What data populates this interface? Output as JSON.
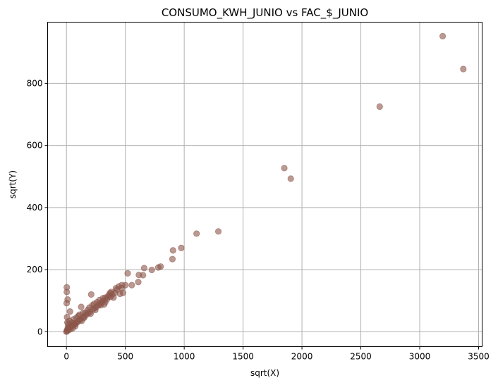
{
  "chart_data": {
    "type": "scatter",
    "title": "CONSUMO_KWH_JUNIO vs FAC_$_JUNIO",
    "xlabel": "sqrt(X)",
    "ylabel": "sqrt(Y)",
    "xlim": [
      -160,
      3530
    ],
    "ylim": [
      -48,
      997
    ],
    "xticks": [
      0,
      500,
      1000,
      1500,
      2000,
      2500,
      3000,
      3500
    ],
    "yticks": [
      0,
      200,
      400,
      600,
      800
    ],
    "grid": true,
    "marker_color": "#8c564b",
    "marker_alpha": 0.6,
    "points": [
      {
        "x": 3195,
        "y": 952
      },
      {
        "x": 3370,
        "y": 846
      },
      {
        "x": 2660,
        "y": 725
      },
      {
        "x": 1850,
        "y": 527
      },
      {
        "x": 1905,
        "y": 493
      },
      {
        "x": 1290,
        "y": 323
      },
      {
        "x": 1105,
        "y": 316
      },
      {
        "x": 975,
        "y": 270
      },
      {
        "x": 905,
        "y": 262
      },
      {
        "x": 900,
        "y": 234
      },
      {
        "x": 800,
        "y": 210
      },
      {
        "x": 780,
        "y": 207
      },
      {
        "x": 725,
        "y": 199
      },
      {
        "x": 660,
        "y": 205
      },
      {
        "x": 650,
        "y": 182
      },
      {
        "x": 615,
        "y": 183
      },
      {
        "x": 610,
        "y": 160
      },
      {
        "x": 555,
        "y": 150
      },
      {
        "x": 520,
        "y": 188
      },
      {
        "x": 500,
        "y": 150
      },
      {
        "x": 470,
        "y": 150
      },
      {
        "x": 455,
        "y": 122
      },
      {
        "x": 445,
        "y": 146
      },
      {
        "x": 430,
        "y": 135
      },
      {
        "x": 410,
        "y": 125
      },
      {
        "x": 390,
        "y": 120
      },
      {
        "x": 375,
        "y": 112
      },
      {
        "x": 360,
        "y": 118
      },
      {
        "x": 345,
        "y": 105
      },
      {
        "x": 330,
        "y": 110
      },
      {
        "x": 315,
        "y": 100
      },
      {
        "x": 300,
        "y": 95
      },
      {
        "x": 285,
        "y": 90
      },
      {
        "x": 270,
        "y": 85
      },
      {
        "x": 255,
        "y": 80
      },
      {
        "x": 240,
        "y": 76
      },
      {
        "x": 225,
        "y": 72
      },
      {
        "x": 210,
        "y": 120
      },
      {
        "x": 200,
        "y": 64
      },
      {
        "x": 185,
        "y": 60
      },
      {
        "x": 170,
        "y": 55
      },
      {
        "x": 155,
        "y": 50
      },
      {
        "x": 140,
        "y": 46
      },
      {
        "x": 125,
        "y": 80
      },
      {
        "x": 115,
        "y": 38
      },
      {
        "x": 100,
        "y": 34
      },
      {
        "x": 90,
        "y": 30
      },
      {
        "x": 80,
        "y": 27
      },
      {
        "x": 70,
        "y": 24
      },
      {
        "x": 60,
        "y": 22
      },
      {
        "x": 50,
        "y": 20
      },
      {
        "x": 40,
        "y": 18
      },
      {
        "x": 30,
        "y": 15
      },
      {
        "x": 20,
        "y": 12
      },
      {
        "x": 10,
        "y": 8
      },
      {
        "x": 5,
        "y": 5
      },
      {
        "x": 2,
        "y": 2
      },
      {
        "x": 0,
        "y": 0
      },
      {
        "x": 3,
        "y": 143
      },
      {
        "x": 3,
        "y": 128
      },
      {
        "x": 10,
        "y": 104
      },
      {
        "x": 2,
        "y": 92
      },
      {
        "x": 5,
        "y": 47
      },
      {
        "x": 30,
        "y": 65
      },
      {
        "x": 60,
        "y": 40
      },
      {
        "x": 180,
        "y": 70
      },
      {
        "x": 260,
        "y": 95
      },
      {
        "x": 330,
        "y": 95
      },
      {
        "x": 370,
        "y": 125
      },
      {
        "x": 400,
        "y": 110
      },
      {
        "x": 470,
        "y": 140
      },
      {
        "x": 480,
        "y": 125
      },
      {
        "x": 140,
        "y": 60
      },
      {
        "x": 100,
        "y": 50
      },
      {
        "x": 220,
        "y": 85
      },
      {
        "x": 45,
        "y": 30
      },
      {
        "x": 25,
        "y": 35
      },
      {
        "x": 15,
        "y": 25
      },
      {
        "x": 75,
        "y": 18
      },
      {
        "x": 120,
        "y": 40
      },
      {
        "x": 160,
        "y": 62
      },
      {
        "x": 195,
        "y": 78
      },
      {
        "x": 235,
        "y": 90
      },
      {
        "x": 280,
        "y": 102
      },
      {
        "x": 310,
        "y": 108
      },
      {
        "x": 350,
        "y": 112
      },
      {
        "x": 380,
        "y": 128
      },
      {
        "x": 420,
        "y": 140
      },
      {
        "x": 150,
        "y": 45
      },
      {
        "x": 85,
        "y": 45
      },
      {
        "x": 55,
        "y": 12
      },
      {
        "x": 35,
        "y": 8
      },
      {
        "x": 110,
        "y": 55
      },
      {
        "x": 245,
        "y": 70
      },
      {
        "x": 290,
        "y": 85
      },
      {
        "x": 205,
        "y": 58
      },
      {
        "x": 130,
        "y": 35
      },
      {
        "x": 65,
        "y": 28
      },
      {
        "x": 8,
        "y": 30
      },
      {
        "x": 12,
        "y": 15
      },
      {
        "x": 18,
        "y": 5
      },
      {
        "x": 320,
        "y": 88
      }
    ]
  }
}
